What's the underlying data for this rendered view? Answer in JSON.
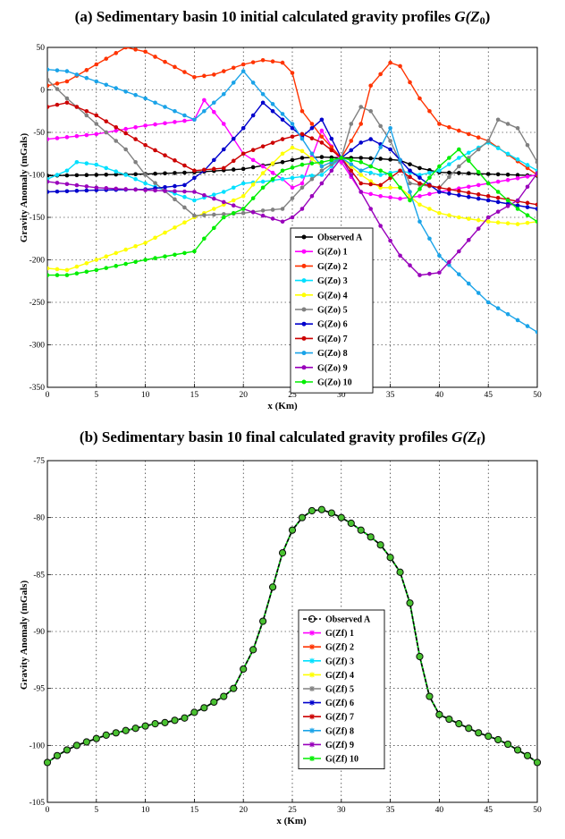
{
  "chart_data": [
    {
      "type": "line",
      "title": "(a) Sedimentary basin 10 initial calculated gravity profiles ",
      "title_math": "G(Z",
      "title_sub": "0",
      "title_close": ")",
      "xlabel": "x (Km)",
      "ylabel": "Gravity Anomaly (mGals)",
      "xlim": [
        0,
        50
      ],
      "ylim": [
        -350,
        50
      ],
      "xticks": [
        0,
        5,
        10,
        15,
        20,
        25,
        30,
        35,
        40,
        45,
        50
      ],
      "yticks": [
        50,
        0,
        -50,
        -100,
        -150,
        -200,
        -250,
        -300,
        -350
      ],
      "legend_position": "center",
      "series": [
        {
          "name": "Observed A",
          "color": "#000000",
          "x": [
            0,
            5,
            10,
            15,
            20,
            24,
            26,
            28,
            30,
            32,
            34,
            36,
            38,
            40,
            45,
            50
          ],
          "y": [
            -101,
            -100,
            -99,
            -97,
            -93,
            -85,
            -80,
            -79,
            -80,
            -80,
            -81,
            -83,
            -92,
            -97,
            -99,
            -101
          ]
        },
        {
          "name": "G(Zo) 1",
          "color": "#ff00ff",
          "x": [
            0,
            5,
            10,
            15,
            16,
            18,
            20,
            22,
            24,
            25,
            26,
            28,
            30,
            32,
            34,
            36,
            38,
            40,
            45,
            50
          ],
          "y": [
            -58,
            -52,
            -42,
            -35,
            -12,
            -40,
            -75,
            -90,
            -105,
            -115,
            -110,
            -48,
            -85,
            -120,
            -125,
            -128,
            -125,
            -120,
            -110,
            -100
          ]
        },
        {
          "name": "G(Zo) 2",
          "color": "#ff3300",
          "x": [
            0,
            2,
            5,
            8,
            10,
            15,
            17,
            20,
            22,
            24,
            25,
            26,
            28,
            30,
            32,
            33,
            35,
            36,
            38,
            40,
            45,
            50
          ],
          "y": [
            5,
            10,
            30,
            50,
            45,
            15,
            18,
            30,
            35,
            32,
            20,
            -25,
            -55,
            -80,
            -40,
            5,
            32,
            28,
            -10,
            -40,
            -60,
            -100
          ]
        },
        {
          "name": "G(Zo) 3",
          "color": "#00e0ff",
          "x": [
            0,
            2,
            3,
            5,
            8,
            10,
            15,
            18,
            20,
            22,
            24,
            26,
            28,
            30,
            32,
            34,
            36,
            38,
            40,
            42,
            45,
            50
          ],
          "y": [
            -105,
            -95,
            -85,
            -88,
            -100,
            -110,
            -130,
            -120,
            -110,
            -108,
            -105,
            -102,
            -100,
            -80,
            -95,
            -100,
            -95,
            -100,
            -95,
            -80,
            -62,
            -95
          ]
        },
        {
          "name": "G(Zo) 4",
          "color": "#ffff00",
          "x": [
            0,
            2,
            5,
            10,
            15,
            20,
            22,
            24,
            25,
            26,
            28,
            30,
            32,
            34,
            36,
            38,
            40,
            42,
            45,
            48,
            50
          ],
          "y": [
            -210,
            -212,
            -200,
            -180,
            -150,
            -125,
            -98,
            -75,
            -68,
            -72,
            -90,
            -80,
            -100,
            -115,
            -115,
            -135,
            -145,
            -150,
            -155,
            -158,
            -155
          ]
        },
        {
          "name": "G(Zo) 5",
          "color": "#808080",
          "x": [
            0,
            2,
            5,
            8,
            10,
            15,
            20,
            22,
            24,
            26,
            28,
            30,
            31,
            32,
            33,
            35,
            37,
            40,
            42,
            45,
            46,
            48,
            50
          ],
          "y": [
            12,
            -10,
            -40,
            -70,
            -100,
            -148,
            -145,
            -142,
            -140,
            -115,
            -95,
            -80,
            -40,
            -20,
            -25,
            -60,
            -110,
            -115,
            -90,
            -60,
            -35,
            -45,
            -85
          ]
        },
        {
          "name": "G(Zo) 6",
          "color": "#0000cc",
          "x": [
            0,
            5,
            10,
            14,
            16,
            18,
            20,
            22,
            24,
            26,
            28,
            30,
            32,
            33,
            35,
            37,
            40,
            45,
            50
          ],
          "y": [
            -120,
            -118,
            -117,
            -112,
            -95,
            -70,
            -45,
            -15,
            -35,
            -55,
            -35,
            -80,
            -62,
            -58,
            -70,
            -95,
            -120,
            -130,
            -140
          ]
        },
        {
          "name": "G(Zo) 7",
          "color": "#cc0000",
          "x": [
            0,
            2,
            5,
            10,
            15,
            18,
            20,
            24,
            26,
            28,
            30,
            32,
            34,
            36,
            38,
            40,
            45,
            50
          ],
          "y": [
            -20,
            -15,
            -30,
            -65,
            -95,
            -92,
            -75,
            -58,
            -52,
            -62,
            -80,
            -110,
            -112,
            -95,
            -110,
            -115,
            -125,
            -135
          ]
        },
        {
          "name": "G(Zo) 8",
          "color": "#1aa3e8",
          "x": [
            0,
            2,
            5,
            10,
            15,
            18,
            20,
            22,
            25,
            27,
            28,
            30,
            32,
            33,
            35,
            37,
            38,
            40,
            45,
            50
          ],
          "y": [
            24,
            22,
            10,
            -10,
            -35,
            -5,
            22,
            -5,
            -40,
            -75,
            -90,
            -80,
            -95,
            -90,
            -45,
            -120,
            -155,
            -195,
            -250,
            -285
          ]
        },
        {
          "name": "G(Zo) 9",
          "color": "#9900bb",
          "x": [
            0,
            5,
            10,
            15,
            20,
            22,
            24,
            25,
            26,
            28,
            30,
            32,
            34,
            36,
            38,
            40,
            42,
            45,
            48,
            50
          ],
          "y": [
            -108,
            -115,
            -118,
            -120,
            -140,
            -148,
            -155,
            -150,
            -140,
            -110,
            -80,
            -120,
            -160,
            -195,
            -218,
            -215,
            -190,
            -150,
            -130,
            -98
          ]
        },
        {
          "name": "G(Zo) 10",
          "color": "#00ee00",
          "x": [
            0,
            2,
            5,
            10,
            15,
            16,
            18,
            20,
            22,
            24,
            26,
            28,
            30,
            32,
            35,
            37,
            40,
            42,
            45,
            48,
            50
          ],
          "y": [
            -218,
            -218,
            -212,
            -200,
            -190,
            -175,
            -150,
            -140,
            -115,
            -95,
            -88,
            -85,
            -80,
            -85,
            -100,
            -130,
            -90,
            -70,
            -110,
            -140,
            -155
          ]
        }
      ]
    },
    {
      "type": "line",
      "title": "(b) Sedimentary basin 10 final calculated gravity profiles ",
      "title_math": "G(Z",
      "title_sub": "f",
      "title_close": ")",
      "xlabel": "x (Km)",
      "ylabel": "Gravity Anomaly (mGals)",
      "xlim": [
        0,
        50
      ],
      "ylim": [
        -105,
        -75
      ],
      "xticks": [
        0,
        5,
        10,
        15,
        20,
        25,
        30,
        35,
        40,
        45,
        50
      ],
      "yticks": [
        -75,
        -80,
        -85,
        -90,
        -95,
        -100,
        -105
      ],
      "legend_position": "center-bottom",
      "x": [
        0,
        1,
        2,
        3,
        4,
        5,
        6,
        7,
        8,
        9,
        10,
        11,
        12,
        13,
        14,
        15,
        16,
        17,
        18,
        19,
        20,
        21,
        22,
        23,
        24,
        25,
        26,
        27,
        28,
        29,
        30,
        31,
        32,
        33,
        34,
        35,
        36,
        37,
        38,
        39,
        40,
        41,
        42,
        43,
        44,
        45,
        46,
        47,
        48,
        49,
        50
      ],
      "observed": [
        -101.5,
        -100.9,
        -100.4,
        -100.0,
        -99.7,
        -99.4,
        -99.1,
        -98.9,
        -98.7,
        -98.5,
        -98.3,
        -98.1,
        -98.0,
        -97.8,
        -97.6,
        -97.1,
        -96.7,
        -96.2,
        -95.7,
        -95.0,
        -93.3,
        -91.6,
        -89.1,
        -86.1,
        -83.1,
        -81.1,
        -80.0,
        -79.4,
        -79.3,
        -79.6,
        -80.0,
        -80.5,
        -81.1,
        -81.7,
        -82.4,
        -83.5,
        -84.8,
        -87.5,
        -92.2,
        -95.7,
        -97.3,
        -97.7,
        -98.1,
        -98.5,
        -98.9,
        -99.2,
        -99.5,
        -99.9,
        -100.4,
        -100.9,
        -101.5
      ],
      "series": [
        {
          "name": "Observed A",
          "color": "#000000"
        },
        {
          "name": "G(Zf) 1",
          "color": "#ff00ff"
        },
        {
          "name": "G(Zf) 2",
          "color": "#ff3300"
        },
        {
          "name": "G(Zf) 3",
          "color": "#00e0ff"
        },
        {
          "name": "G(Zf) 4",
          "color": "#ffff00"
        },
        {
          "name": "G(Zf) 5",
          "color": "#808080"
        },
        {
          "name": "G(Zf) 6",
          "color": "#0000cc"
        },
        {
          "name": "G(Zf) 7",
          "color": "#cc0000"
        },
        {
          "name": "G(Zf) 8",
          "color": "#1aa3e8"
        },
        {
          "name": "G(Zf) 9",
          "color": "#9900bb"
        },
        {
          "name": "G(Zf) 10",
          "color": "#00ee00"
        }
      ]
    }
  ]
}
